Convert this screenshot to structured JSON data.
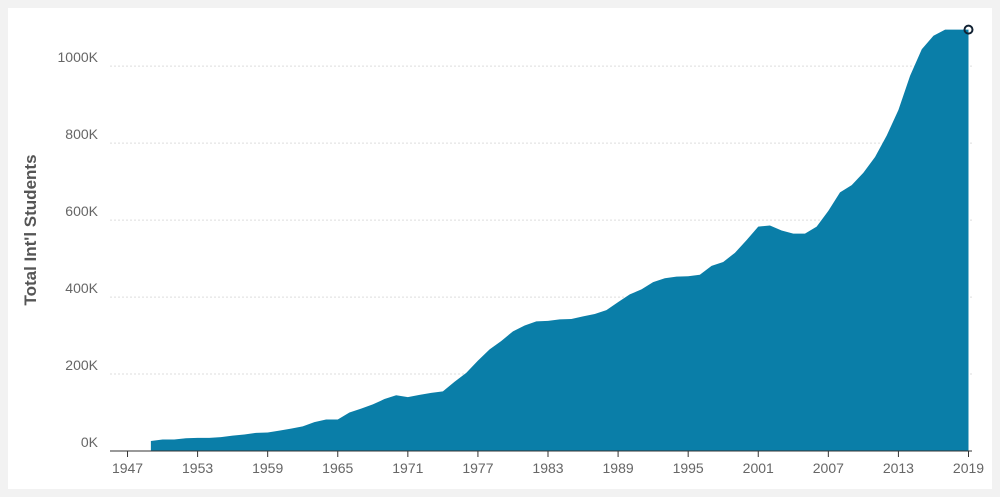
{
  "chart_data": {
    "type": "area",
    "y_label": "Total Int'l Students",
    "color": "#0a7ea8",
    "grid": true,
    "x": [
      1949,
      1950,
      1951,
      1952,
      1953,
      1954,
      1955,
      1956,
      1957,
      1958,
      1959,
      1960,
      1961,
      1962,
      1963,
      1964,
      1965,
      1966,
      1967,
      1968,
      1969,
      1970,
      1971,
      1972,
      1973,
      1974,
      1975,
      1976,
      1977,
      1978,
      1979,
      1980,
      1981,
      1982,
      1983,
      1984,
      1985,
      1986,
      1987,
      1988,
      1989,
      1990,
      1991,
      1992,
      1993,
      1994,
      1995,
      1996,
      1997,
      1998,
      1999,
      2000,
      2001,
      2002,
      2003,
      2004,
      2005,
      2006,
      2007,
      2008,
      2009,
      2010,
      2011,
      2012,
      2013,
      2014,
      2015,
      2016,
      2017,
      2018,
      2019
    ],
    "values": [
      26000,
      30000,
      30000,
      33000,
      34000,
      34000,
      36000,
      40000,
      43000,
      47000,
      48000,
      53000,
      58000,
      64000,
      75000,
      82000,
      82000,
      100000,
      110000,
      121000,
      135000,
      145000,
      140000,
      146000,
      151000,
      155000,
      180000,
      203000,
      235000,
      264000,
      286000,
      311000,
      326000,
      337000,
      338000,
      342000,
      343000,
      350000,
      356000,
      366000,
      387000,
      407000,
      420000,
      439000,
      449000,
      453000,
      454000,
      458000,
      481000,
      491000,
      515000,
      548000,
      583000,
      586000,
      573000,
      565000,
      565000,
      583000,
      624000,
      672000,
      691000,
      723000,
      764000,
      820000,
      886000,
      975000,
      1044000,
      1079000,
      1095000,
      1095000,
      1095000
    ],
    "xlim": [
      1945.5,
      2019.3
    ],
    "xticks": [
      1947,
      1953,
      1959,
      1965,
      1971,
      1977,
      1983,
      1989,
      1995,
      2001,
      2007,
      2013,
      2019
    ],
    "ylim": [
      0,
      1120000
    ],
    "yticks": [
      {
        "value": 0,
        "label": "0K"
      },
      {
        "value": 200000,
        "label": "200K"
      },
      {
        "value": 400000,
        "label": "400K"
      },
      {
        "value": 600000,
        "label": "600K"
      },
      {
        "value": 800000,
        "label": "800K"
      },
      {
        "value": 1000000,
        "label": "1000K"
      }
    ]
  }
}
